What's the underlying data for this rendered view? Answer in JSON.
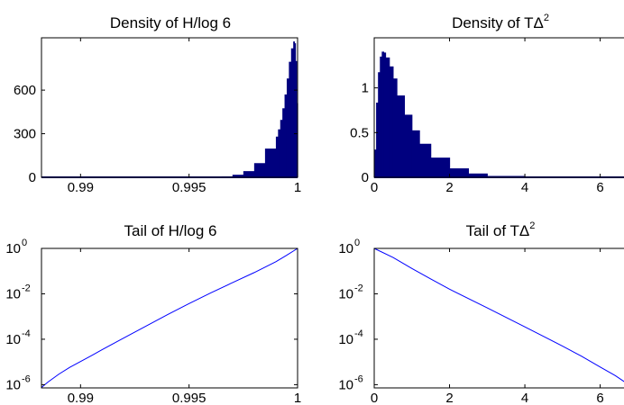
{
  "chart_data": [
    {
      "type": "bar",
      "title": "Density of H/log 6",
      "xlabel": "",
      "ylabel": "",
      "xlim": [
        0.9882,
        1.0
      ],
      "ylim": [
        0,
        960
      ],
      "xticks": [
        0.99,
        0.995,
        1
      ],
      "xtick_labels": [
        "0.99",
        "0.995",
        "1"
      ],
      "yticks": [
        0,
        300,
        600
      ],
      "ytick_labels": [
        "0",
        "300",
        "600"
      ],
      "color": "#00007f",
      "x": [
        0.9965,
        0.997,
        0.9975,
        0.998,
        0.9985,
        0.999,
        0.9991,
        0.9992,
        0.9993,
        0.9994,
        0.9995,
        0.9996,
        0.9997,
        0.9998,
        0.99985,
        0.9999,
        0.99995,
        1.0
      ],
      "values": [
        3,
        10,
        25,
        60,
        135,
        260,
        300,
        360,
        430,
        520,
        620,
        740,
        850,
        925,
        945,
        900,
        700,
        320
      ]
    },
    {
      "type": "bar",
      "title_main": "Density of T",
      "title_delta": "Δ",
      "title_exp": "2",
      "xlabel": "",
      "ylabel": "",
      "xlim": [
        0,
        6.8
      ],
      "ylim": [
        0,
        1.56
      ],
      "xticks": [
        0,
        2,
        4,
        6
      ],
      "xtick_labels": [
        "0",
        "2",
        "4",
        "6"
      ],
      "yticks": [
        0,
        0.5,
        1
      ],
      "ytick_labels": [
        "0",
        "0.5",
        "1"
      ],
      "color": "#00007f",
      "x": [
        0,
        0.05,
        0.1,
        0.15,
        0.2,
        0.25,
        0.3,
        0.4,
        0.5,
        0.6,
        0.8,
        1.0,
        1.2,
        1.5,
        2.0,
        2.5,
        3.0,
        4.0,
        5.0,
        6.8
      ],
      "values": [
        0,
        0.62,
        1.05,
        1.3,
        1.4,
        1.41,
        1.38,
        1.3,
        1.18,
        1.03,
        0.8,
        0.6,
        0.45,
        0.3,
        0.14,
        0.06,
        0.025,
        0.005,
        0.001,
        0
      ]
    },
    {
      "type": "line",
      "title": "Tail of H/log 6",
      "xlabel": "",
      "ylabel": "",
      "yscale": "log",
      "xlim": [
        0.9882,
        1.0
      ],
      "ylim": [
        7.2e-07,
        1
      ],
      "xticks": [
        0.99,
        0.995,
        1
      ],
      "xtick_labels": [
        "0.99",
        "0.995",
        "1"
      ],
      "ytick_values": [
        1e-06,
        0.0001,
        0.01,
        1
      ],
      "ytick_base": [
        "10",
        "10",
        "10",
        "10"
      ],
      "ytick_exp": [
        "-6",
        "-4",
        "-2",
        "0"
      ],
      "color": "#0000ff",
      "x": [
        0.9882,
        0.9885,
        0.989,
        0.9895,
        0.99,
        0.9905,
        0.991,
        0.992,
        0.993,
        0.994,
        0.995,
        0.996,
        0.997,
        0.998,
        0.999,
        0.9995,
        1.0
      ],
      "y": [
        7.5e-07,
        1.3e-06,
        2.9e-06,
        5.8e-06,
        1.05e-05,
        1.9e-05,
        3.5e-05,
        0.000115,
        0.00037,
        0.0012,
        0.0037,
        0.011,
        0.031,
        0.086,
        0.26,
        0.5,
        1.0
      ]
    },
    {
      "type": "line",
      "title_main": "Tail of T",
      "title_delta": "Δ",
      "title_exp": "2",
      "xlabel": "",
      "ylabel": "",
      "yscale": "log",
      "xlim": [
        0,
        6.8
      ],
      "ylim": [
        7.2e-07,
        1
      ],
      "xticks": [
        0,
        2,
        4,
        6
      ],
      "xtick_labels": [
        "0",
        "2",
        "4",
        "6"
      ],
      "ytick_values": [
        1e-06,
        0.0001,
        0.01,
        1
      ],
      "ytick_base": [
        "10",
        "10",
        "10",
        "10"
      ],
      "ytick_exp": [
        "-6",
        "-4",
        "-2",
        "0"
      ],
      "color": "#0000ff",
      "x": [
        0,
        0.5,
        1,
        1.5,
        2,
        3,
        4,
        5,
        5.5,
        6,
        6.4,
        6.8
      ],
      "y": [
        1.0,
        0.4,
        0.13,
        0.045,
        0.016,
        0.0024,
        0.00035,
        5e-05,
        1.8e-05,
        6e-06,
        2.5e-06,
        9e-07
      ]
    }
  ]
}
